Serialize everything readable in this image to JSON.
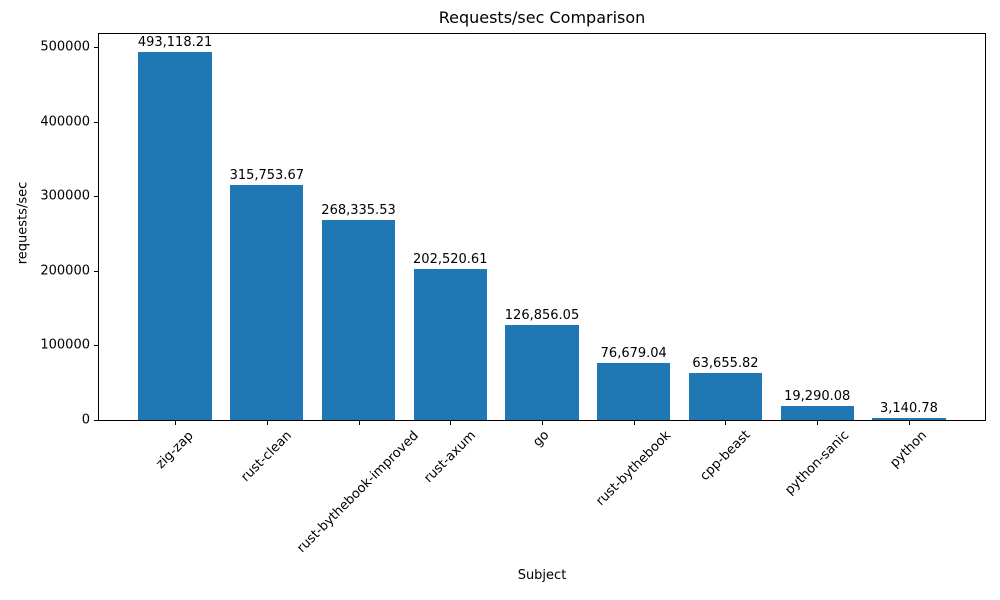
{
  "chart_data": {
    "type": "bar",
    "title": "Requests/sec Comparison",
    "xlabel": "Subject",
    "ylabel": "requests/sec",
    "categories": [
      "zig-zap",
      "rust-clean",
      "rust-bythebook-improved",
      "rust-axum",
      "go",
      "rust-bythebook",
      "cpp-beast",
      "python-sanic",
      "python"
    ],
    "values": [
      493118.21,
      315753.67,
      268335.53,
      202520.61,
      126856.05,
      76679.04,
      63655.82,
      19290.08,
      3140.78
    ],
    "value_labels": [
      "493,118.21",
      "315,753.67",
      "268,335.53",
      "202,520.61",
      "126,856.05",
      "76,679.04",
      "63,655.82",
      "19,290.08",
      "3,140.78"
    ],
    "y_ticks": [
      0,
      100000,
      200000,
      300000,
      400000,
      500000
    ],
    "y_tick_labels": [
      "0",
      "100000",
      "200000",
      "300000",
      "400000",
      "500000"
    ],
    "ylim": [
      0,
      517774
    ],
    "bar_color": "#1f77b4",
    "grid": false,
    "legend": null,
    "x_tick_rotation": 45
  }
}
